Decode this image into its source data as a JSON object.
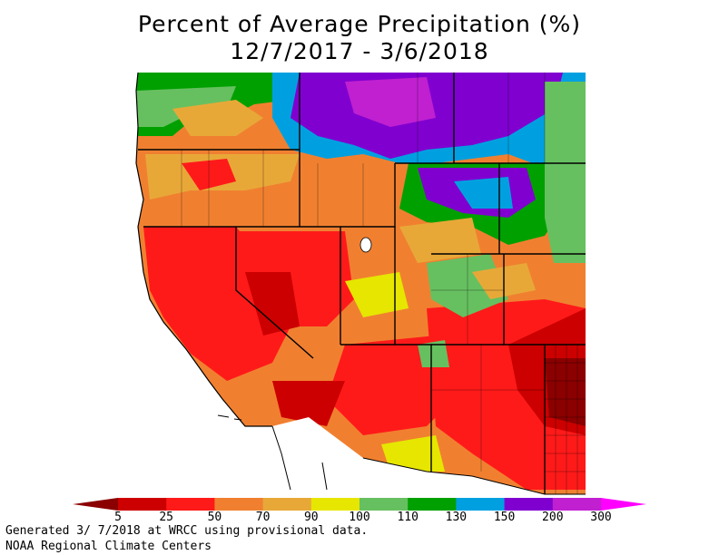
{
  "title": "Percent of Average Precipitation (%)",
  "subtitle": "12/7/2017 - 3/6/2018",
  "legend": {
    "labels": [
      "5",
      "25",
      "50",
      "70",
      "90",
      "100",
      "110",
      "130",
      "150",
      "200",
      "300"
    ],
    "colors": [
      "#8b0000",
      "#cc0000",
      "#ff1a1a",
      "#f08030",
      "#e8a838",
      "#e6e600",
      "#66c060",
      "#00a000",
      "#00a0e0",
      "#8000d0",
      "#c020d0",
      "#ff00ff"
    ]
  },
  "footer": {
    "line1": "Generated 3/ 7/2018 at WRCC using provisional data.",
    "line2": "NOAA Regional Climate Centers"
  }
}
